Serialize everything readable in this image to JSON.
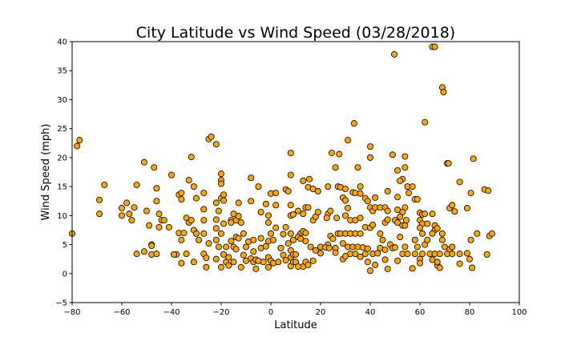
{
  "chart_data": {
    "type": "scatter",
    "title": "City Latitude vs Wind Speed (03/28/2018)",
    "xlabel": "Latitude",
    "ylabel": "Wind Speed (mph)",
    "xlim": [
      -80,
      100
    ],
    "ylim": [
      -5,
      40
    ],
    "xticks": [
      "-80",
      "-60",
      "-40",
      "-20",
      "0",
      "20",
      "40",
      "60",
      "80",
      "100"
    ],
    "yticks": [
      "-5",
      "0",
      "5",
      "10",
      "15",
      "20",
      "25",
      "30",
      "35",
      "40"
    ],
    "grid": false,
    "marker_color": "#FFA500",
    "marker_edge_color": "#000000",
    "points": [
      [
        -80,
        6.9
      ],
      [
        -78,
        22
      ],
      [
        -77,
        23
      ],
      [
        -67,
        15.3
      ],
      [
        -69,
        12.7
      ],
      [
        -69,
        10.3
      ],
      [
        -60,
        11.3
      ],
      [
        -60,
        10
      ],
      [
        -58,
        12.2
      ],
      [
        -57,
        10.3
      ],
      [
        -56,
        9.2
      ],
      [
        -55,
        11.4
      ],
      [
        -54,
        3.4
      ],
      [
        -54,
        15.3
      ],
      [
        -51,
        19.2
      ],
      [
        -50,
        10.8
      ],
      [
        -51,
        3.8
      ],
      [
        -49,
        8.3
      ],
      [
        -48,
        5
      ],
      [
        -48,
        4.8
      ],
      [
        -48,
        3.3
      ],
      [
        -47,
        18.3
      ],
      [
        -46,
        12.5
      ],
      [
        -46,
        14.7
      ],
      [
        -46,
        3.4
      ],
      [
        -45,
        8
      ],
      [
        -45,
        10.3
      ],
      [
        -44,
        9.2
      ],
      [
        -43,
        9.2
      ],
      [
        -40,
        17
      ],
      [
        -41,
        8
      ],
      [
        -38,
        3.3
      ],
      [
        -39,
        3.3
      ],
      [
        -37,
        13.6
      ],
      [
        -37,
        7
      ],
      [
        -36,
        13.9
      ],
      [
        -36,
        12.8
      ],
      [
        -36,
        5.8
      ],
      [
        -36,
        1.8
      ],
      [
        -35,
        7
      ],
      [
        -34,
        9.6
      ],
      [
        -34,
        3.4
      ],
      [
        -33,
        16.1
      ],
      [
        -33,
        8.8
      ],
      [
        -32,
        20.1
      ],
      [
        -32,
        9.2
      ],
      [
        -31,
        15
      ],
      [
        -31,
        7.5
      ],
      [
        -31,
        2
      ],
      [
        -30,
        13
      ],
      [
        -30,
        6.9
      ],
      [
        -29,
        5.8
      ],
      [
        -27,
        13.9
      ],
      [
        -27,
        11.1
      ],
      [
        -27,
        9.2
      ],
      [
        -27,
        6.9
      ],
      [
        -27,
        3.4
      ],
      [
        -26,
        2.7
      ],
      [
        -26,
        1.1
      ],
      [
        -25,
        23.2
      ],
      [
        -24,
        23.6
      ],
      [
        -25,
        5.2
      ],
      [
        -22,
        22.3
      ],
      [
        -22,
        12.2
      ],
      [
        -22,
        9.3
      ],
      [
        -22,
        7.8
      ],
      [
        -22,
        5.8
      ],
      [
        -22,
        2.5
      ],
      [
        -21,
        10.8
      ],
      [
        -21,
        4.6
      ],
      [
        -20,
        17.2
      ],
      [
        -20,
        16.1
      ],
      [
        -20,
        15.5
      ],
      [
        -20,
        13
      ],
      [
        -20,
        6.9
      ],
      [
        -20,
        1.1
      ],
      [
        -19,
        13.6
      ],
      [
        -19,
        8.6
      ],
      [
        -19,
        12.6
      ],
      [
        -19,
        3.3
      ],
      [
        -18,
        2
      ],
      [
        -18,
        4.6
      ],
      [
        -17,
        1.4
      ],
      [
        -17,
        2.8
      ],
      [
        -16,
        9.2
      ],
      [
        -16,
        8.8
      ],
      [
        -16,
        5.6
      ],
      [
        -15,
        10.3
      ],
      [
        -15,
        4.6
      ],
      [
        -15,
        2
      ],
      [
        -14,
        9.2
      ],
      [
        -14,
        6.3
      ],
      [
        -14,
        4.2
      ],
      [
        -13,
        12.2
      ],
      [
        -13,
        9.9
      ],
      [
        -13,
        6.1
      ],
      [
        -12,
        1.1
      ],
      [
        -12,
        8.8
      ],
      [
        -11,
        6.9
      ],
      [
        -11,
        3.2
      ],
      [
        -10,
        4.6
      ],
      [
        -10,
        2.2
      ],
      [
        -9,
        5.5
      ],
      [
        -8,
        16.5
      ],
      [
        -8,
        12.5
      ],
      [
        -8,
        2.6
      ],
      [
        -7,
        5.8
      ],
      [
        -7,
        3.8
      ],
      [
        -7,
        2
      ],
      [
        -6,
        0.8
      ],
      [
        -6,
        2.4
      ],
      [
        -5,
        15
      ],
      [
        -5,
        2.2
      ],
      [
        -4,
        10.6
      ],
      [
        -4,
        6.1
      ],
      [
        -4,
        4.4
      ],
      [
        -3,
        2
      ],
      [
        -2,
        4.7
      ],
      [
        -2,
        12
      ],
      [
        -1,
        10
      ],
      [
        -1,
        8.8
      ],
      [
        -1,
        5.6
      ],
      [
        -1,
        1.1
      ],
      [
        -1,
        2.8
      ],
      [
        0,
        13.8
      ],
      [
        0,
        6.9
      ],
      [
        0,
        2.2
      ],
      [
        1,
        1.8
      ],
      [
        1,
        5.8
      ],
      [
        2,
        13.9
      ],
      [
        2,
        11.8
      ],
      [
        2,
        7.9
      ],
      [
        3,
        2
      ],
      [
        4,
        4.4
      ],
      [
        5,
        6.8
      ],
      [
        5,
        3.2
      ],
      [
        6,
        14.5
      ],
      [
        6,
        2.3
      ],
      [
        6,
        8
      ],
      [
        7,
        14.2
      ],
      [
        7,
        5.2
      ],
      [
        8,
        20.8
      ],
      [
        8,
        17
      ],
      [
        8,
        11.8
      ],
      [
        8,
        10
      ],
      [
        8,
        6.9
      ],
      [
        8,
        4
      ],
      [
        8,
        2.8
      ],
      [
        8,
        1.3
      ],
      [
        9,
        10.2
      ],
      [
        9,
        5.8
      ],
      [
        9,
        3.3
      ],
      [
        9,
        2
      ],
      [
        49.7,
        37.8
      ],
      [
        65,
        39.1
      ],
      [
        66,
        39.1
      ],
      [
        69,
        32.1
      ],
      [
        69.5,
        31.3
      ],
      [
        62,
        26.1
      ],
      [
        33.5,
        25.9
      ],
      [
        31,
        23
      ],
      [
        40,
        21.9
      ],
      [
        40,
        20
      ],
      [
        24.5,
        20.8
      ],
      [
        27.5,
        20.6
      ],
      [
        49,
        20.5
      ],
      [
        54,
        20.2
      ],
      [
        54,
        18.3
      ],
      [
        51,
        17.8
      ],
      [
        53,
        16.3
      ],
      [
        52,
        16
      ],
      [
        81.5,
        19.8
      ],
      [
        71,
        19
      ],
      [
        71.5,
        19
      ],
      [
        26,
        18.3
      ],
      [
        35,
        18.3
      ],
      [
        13,
        16
      ],
      [
        15.5,
        16.3
      ],
      [
        15,
        14.9
      ],
      [
        17,
        14.6
      ],
      [
        19,
        14.2
      ],
      [
        23,
        15
      ],
      [
        27,
        15
      ],
      [
        28,
        14.9
      ],
      [
        30,
        14.6
      ],
      [
        33,
        14
      ],
      [
        36,
        15
      ],
      [
        47,
        14.2
      ],
      [
        55,
        15
      ],
      [
        55.5,
        13.9
      ],
      [
        57,
        15
      ],
      [
        76,
        15.8
      ],
      [
        86,
        14.5
      ],
      [
        87.5,
        14.3
      ],
      [
        80.5,
        13.9
      ],
      [
        29,
        13.1
      ],
      [
        30,
        12.6
      ],
      [
        34,
        13.9
      ],
      [
        36,
        13.8
      ],
      [
        38,
        13
      ],
      [
        39,
        12.5
      ],
      [
        42,
        13.1
      ],
      [
        58,
        12.8
      ],
      [
        59,
        12.8
      ],
      [
        51,
        13.2
      ],
      [
        54,
        11.4
      ],
      [
        40,
        11.4
      ],
      [
        41,
        10.8
      ],
      [
        42,
        11.4
      ],
      [
        44,
        11.4
      ],
      [
        46,
        11.4
      ],
      [
        47,
        10.8
      ],
      [
        51,
        11
      ],
      [
        53,
        10.6
      ],
      [
        60,
        10.5
      ],
      [
        61,
        10.2
      ],
      [
        62,
        10.3
      ],
      [
        65,
        10.3
      ],
      [
        72,
        11.3
      ],
      [
        73,
        11.8
      ],
      [
        74,
        10.7
      ],
      [
        79,
        11.3
      ],
      [
        14,
        11.4
      ],
      [
        15,
        11.4
      ],
      [
        13,
        10.3
      ],
      [
        11,
        10.8
      ],
      [
        17,
        9.2
      ],
      [
        18,
        9.8
      ],
      [
        19,
        10.6
      ],
      [
        23,
        10.3
      ],
      [
        24,
        10.8
      ],
      [
        22.5,
        9.6
      ],
      [
        26.5,
        9.6
      ],
      [
        30,
        10
      ],
      [
        32,
        9.2
      ],
      [
        34,
        9.2
      ],
      [
        36,
        9.6
      ],
      [
        31,
        11.3
      ],
      [
        38,
        8
      ],
      [
        40,
        7.9
      ],
      [
        41,
        8.4
      ],
      [
        44,
        6.9
      ],
      [
        46,
        8.8
      ],
      [
        47,
        9.3
      ],
      [
        50,
        9.2
      ],
      [
        51,
        8.8
      ],
      [
        52,
        9.8
      ],
      [
        53,
        8.3
      ],
      [
        54,
        8.3
      ],
      [
        54.5,
        9.2
      ],
      [
        60,
        9.2
      ],
      [
        61,
        8.6
      ],
      [
        61,
        6.9
      ],
      [
        63,
        8.6
      ],
      [
        66,
        8.3
      ],
      [
        66,
        7.5
      ],
      [
        67,
        7.8
      ],
      [
        69,
        6.9
      ],
      [
        60,
        7.9
      ],
      [
        65,
        6.9
      ],
      [
        83,
        6.9
      ],
      [
        88,
        6.5
      ],
      [
        89,
        6.9
      ],
      [
        27,
        6.9
      ],
      [
        28,
        6.9
      ],
      [
        29,
        5.2
      ],
      [
        30,
        6.9
      ],
      [
        32,
        6.9
      ],
      [
        34,
        6.9
      ],
      [
        36,
        6.9
      ],
      [
        24,
        6.5
      ],
      [
        23,
        5
      ],
      [
        25,
        6
      ],
      [
        26,
        4.4
      ],
      [
        20,
        4.6
      ],
      [
        16,
        4.6
      ],
      [
        14,
        5.6
      ],
      [
        12,
        6.9
      ],
      [
        11,
        6.3
      ],
      [
        12,
        6
      ],
      [
        13,
        7.3
      ],
      [
        14,
        7
      ],
      [
        20,
        3.5
      ],
      [
        22,
        4.5
      ],
      [
        23.5,
        4.4
      ],
      [
        26,
        3.6
      ],
      [
        29,
        2.5
      ],
      [
        30,
        3
      ],
      [
        31,
        4.6
      ],
      [
        32,
        3.4
      ],
      [
        33,
        4.6
      ],
      [
        34,
        3.4
      ],
      [
        35,
        4.6
      ],
      [
        36,
        2.9
      ],
      [
        37,
        4.5
      ],
      [
        38,
        3.4
      ],
      [
        39,
        4.3
      ],
      [
        39,
        2
      ],
      [
        40,
        0.5
      ],
      [
        41,
        3.4
      ],
      [
        42,
        1.5
      ],
      [
        43,
        3.5
      ],
      [
        44,
        4.4
      ],
      [
        45,
        5.8
      ],
      [
        46,
        4.1
      ],
      [
        46,
        2.4
      ],
      [
        47,
        0.8
      ],
      [
        48,
        5
      ],
      [
        49,
        4.4
      ],
      [
        50,
        4.5
      ],
      [
        51,
        2.2
      ],
      [
        52,
        6.3
      ],
      [
        53,
        3.4
      ],
      [
        54,
        4.6
      ],
      [
        55,
        3.4
      ],
      [
        57,
        0.9
      ],
      [
        58,
        3.4
      ],
      [
        58,
        5.8
      ],
      [
        59,
        4.6
      ],
      [
        60,
        2.5
      ],
      [
        60,
        1.8
      ],
      [
        61,
        3.4
      ],
      [
        62,
        5
      ],
      [
        63,
        5.8
      ],
      [
        64,
        3.4
      ],
      [
        65,
        2.4
      ],
      [
        66,
        3.4
      ],
      [
        67,
        1.4
      ],
      [
        67,
        2
      ],
      [
        68,
        1
      ],
      [
        68,
        3.4
      ],
      [
        69,
        5.8
      ],
      [
        70,
        4.6
      ],
      [
        71,
        3.4
      ],
      [
        72,
        4.2
      ],
      [
        73,
        3.4
      ],
      [
        73,
        4.6
      ],
      [
        76,
        3.4
      ],
      [
        76,
        1.7
      ],
      [
        79,
        3.5
      ],
      [
        80,
        2.5
      ],
      [
        80.5,
        5.8
      ],
      [
        81,
        1
      ],
      [
        87,
        3.3
      ],
      [
        13,
        1.2
      ],
      [
        14,
        2
      ],
      [
        15,
        1.5
      ],
      [
        17,
        2.2
      ],
      [
        18,
        4
      ],
      [
        10,
        2
      ],
      [
        10,
        3.3
      ],
      [
        11,
        1.2
      ]
    ]
  }
}
